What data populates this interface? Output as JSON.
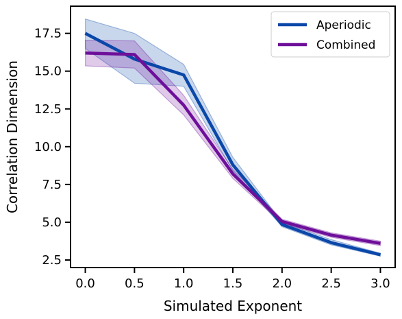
{
  "chart_data": {
    "type": "line",
    "title": "",
    "xlabel": "Simulated Exponent",
    "ylabel": "Correlation Dimension",
    "xlim": [
      -0.15,
      3.15
    ],
    "ylim": [
      2.0,
      19.3
    ],
    "xticks": [
      0.0,
      0.5,
      1.0,
      1.5,
      2.0,
      2.5,
      3.0
    ],
    "xtick_labels": [
      "0.0",
      "0.5",
      "1.0",
      "1.5",
      "2.0",
      "2.5",
      "3.0"
    ],
    "yticks": [
      2.5,
      5.0,
      7.5,
      10.0,
      12.5,
      15.0,
      17.5
    ],
    "ytick_labels": [
      "2.5",
      "5.0",
      "7.5",
      "10.0",
      "12.5",
      "15.0",
      "17.5"
    ],
    "grid": false,
    "legend": "top-right",
    "series": [
      {
        "name": "Aperiodic",
        "color": "#0a47a9",
        "x": [
          0.0,
          0.5,
          1.0,
          1.5,
          2.0,
          2.5,
          3.0
        ],
        "y": [
          17.5,
          15.8,
          14.75,
          8.8,
          4.85,
          3.65,
          2.85
        ],
        "lower": [
          16.5,
          14.2,
          14.0,
          8.4,
          4.7,
          3.5,
          2.75
        ],
        "upper": [
          18.45,
          17.5,
          15.45,
          9.3,
          5.0,
          3.85,
          2.95
        ]
      },
      {
        "name": "Combined",
        "color": "#6e0f9a",
        "x": [
          0.0,
          0.5,
          1.0,
          1.5,
          2.0,
          2.5,
          3.0
        ],
        "y": [
          16.2,
          16.1,
          12.75,
          8.2,
          5.05,
          4.15,
          3.6
        ],
        "lower": [
          15.35,
          15.2,
          12.1,
          7.9,
          4.9,
          4.0,
          3.45
        ],
        "upper": [
          17.05,
          17.0,
          13.4,
          8.5,
          5.2,
          4.3,
          3.75
        ]
      }
    ]
  }
}
